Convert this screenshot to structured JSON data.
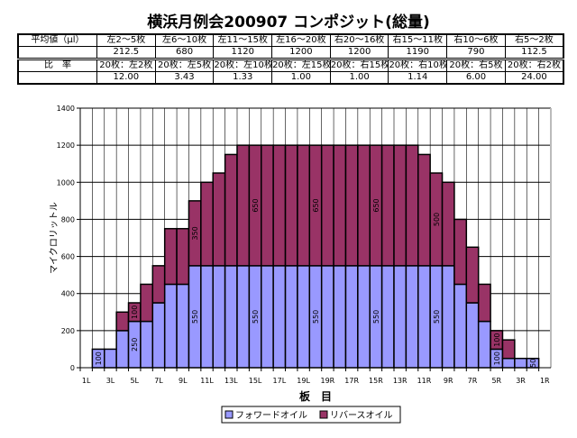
{
  "title": "横浜月例会200907 コンポジット(総量)",
  "table": {
    "row1_header": "平均値（μl）",
    "groups": [
      "左2～5枚",
      "左6～10枚",
      "左11～15枚",
      "左16～20枚",
      "右20～16枚",
      "右15～11枚",
      "右10～6枚",
      "右5～2枚"
    ],
    "averages": [
      "212.5",
      "680",
      "1120",
      "1200",
      "1200",
      "1190",
      "790",
      "112.5"
    ],
    "row2_header": "比　率",
    "ratio_labels": [
      "20枚：左2枚",
      "20枚：左5枚",
      "20枚：左10枚",
      "20枚：左15枚",
      "20枚：右15枚",
      "20枚：右10枚",
      "20枚：右5枚",
      "20枚：右2枚"
    ],
    "ratios": [
      "12.00",
      "3.43",
      "1.33",
      "1.00",
      "1.00",
      "1.14",
      "6.00",
      "24.00"
    ]
  },
  "chart_data": {
    "type": "bar",
    "stacked": true,
    "xlabel": "板　目",
    "ylabel": "マイクロリットル",
    "ylim": [
      0,
      1400
    ],
    "yticks": [
      0,
      200,
      400,
      600,
      800,
      1000,
      1200,
      1400
    ],
    "grid": true,
    "legend": "bottom",
    "categories": [
      "1L",
      "2L",
      "3L",
      "4L",
      "5L",
      "6L",
      "7L",
      "8L",
      "9L",
      "10L",
      "11L",
      "12L",
      "13L",
      "14L",
      "15L",
      "16L",
      "17L",
      "18L",
      "19L",
      "20L",
      "19R",
      "18R",
      "17R",
      "16R",
      "15R",
      "14R",
      "13R",
      "12R",
      "11R",
      "10R",
      "9R",
      "8R",
      "7R",
      "6R",
      "5R",
      "4R",
      "3R",
      "2R",
      "1R"
    ],
    "tick_labels": [
      "1L",
      "3L",
      "5L",
      "7L",
      "9L",
      "11L",
      "13L",
      "15L",
      "17L",
      "19L",
      "19R",
      "17R",
      "15R",
      "13R",
      "11R",
      "9R",
      "7R",
      "5R",
      "3R",
      "1R"
    ],
    "series": [
      {
        "name": "フォワードオイル",
        "color": "#9999FF",
        "values": [
          0,
          100,
          100,
          200,
          250,
          250,
          350,
          450,
          450,
          550,
          550,
          550,
          550,
          550,
          550,
          550,
          550,
          550,
          550,
          550,
          550,
          550,
          550,
          550,
          550,
          550,
          550,
          550,
          550,
          550,
          550,
          450,
          350,
          250,
          100,
          50,
          50,
          50,
          0
        ]
      },
      {
        "name": "リバースオイル",
        "color": "#993366",
        "values": [
          0,
          0,
          0,
          100,
          100,
          200,
          200,
          300,
          300,
          350,
          450,
          500,
          600,
          650,
          650,
          650,
          650,
          650,
          650,
          650,
          650,
          650,
          650,
          650,
          650,
          650,
          650,
          650,
          600,
          500,
          450,
          350,
          300,
          200,
          100,
          100,
          0,
          0,
          0
        ]
      }
    ],
    "data_labels_at": [
      "2L",
      "5L",
      "10L",
      "15L",
      "20L",
      "15R",
      "10R",
      "5R",
      "2R"
    ]
  }
}
